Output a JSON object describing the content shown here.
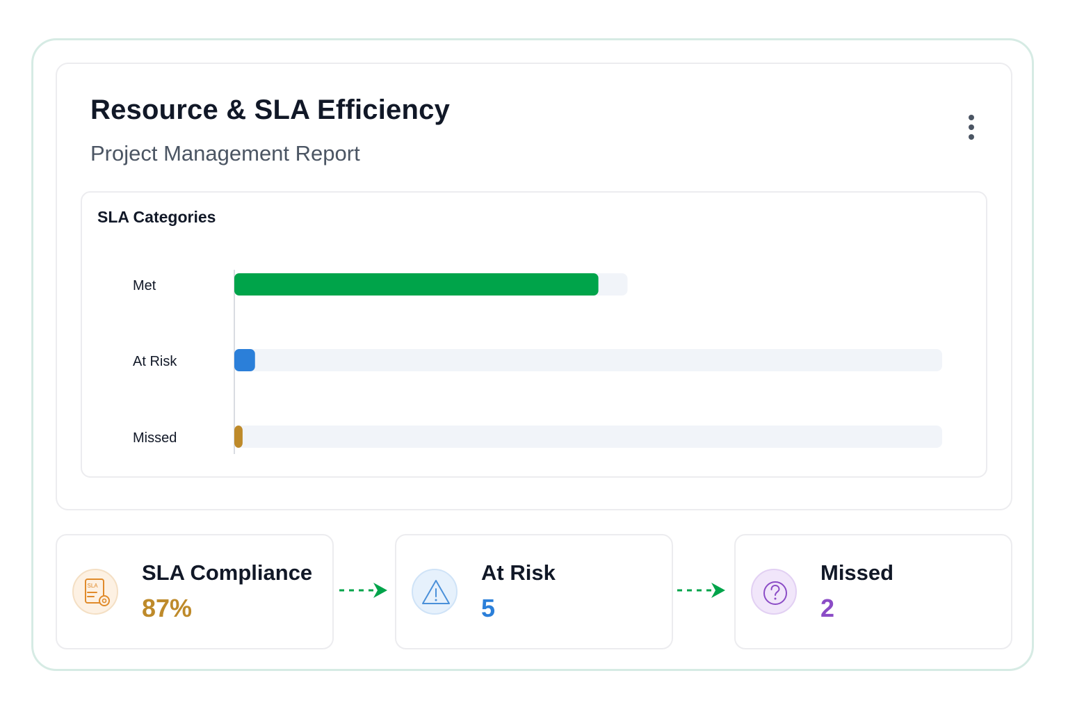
{
  "header": {
    "title": "Resource & SLA Efficiency",
    "subtitle": "Project Management Report"
  },
  "chart_data": {
    "type": "bar",
    "orientation": "horizontal",
    "title": "SLA Categories",
    "categories": [
      "Met",
      "At Risk",
      "Missed"
    ],
    "values": [
      88,
      5,
      2
    ],
    "track_max": [
      100,
      180,
      180
    ],
    "xlabel": "",
    "ylabel": "",
    "grid": false,
    "colors": [
      "#00a44a",
      "#2b7fd9",
      "#be8a2a"
    ],
    "track_color": "#f1f4f9"
  },
  "stats": [
    {
      "label": "SLA Compliance",
      "value": "87%",
      "icon": "sla-document-icon",
      "color": "#be8a2a",
      "bg": "#fdf1e3",
      "border": "#f4dfc4"
    },
    {
      "label": "At Risk",
      "value": "5",
      "icon": "warning-triangle-icon",
      "color": "#2b7fd9",
      "bg": "#e6f1fc",
      "border": "#cfe3f7"
    },
    {
      "label": "Missed",
      "value": "2",
      "icon": "question-circle-icon",
      "color": "#8b4cc6",
      "bg": "#f1e6fa",
      "border": "#e2d0f3"
    }
  ],
  "icons": {
    "sla_badge_text": "SLA"
  },
  "accent_arrow_color": "#00a44a"
}
